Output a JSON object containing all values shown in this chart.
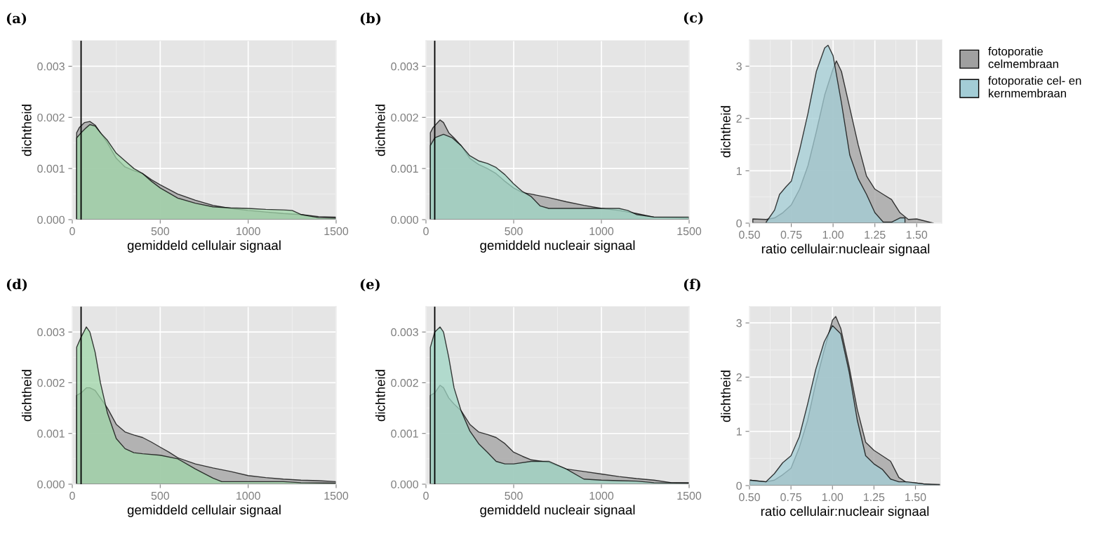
{
  "chart_data": [
    {
      "type": "area",
      "title": "(a)",
      "xlabel": "gemiddeld cellulair signaal",
      "ylabel": "dichtheid",
      "xlim": [
        0,
        1500
      ],
      "xticks": [
        0,
        500,
        1000,
        1500
      ],
      "ylim": [
        0,
        0.0035
      ],
      "yticks": [
        {
          "value": 0,
          "label": "0.000"
        },
        {
          "value": 0.001,
          "label": "0.001"
        },
        {
          "value": 0.002,
          "label": "0.002"
        },
        {
          "value": 0.003,
          "label": "0.003"
        }
      ],
      "grid": true,
      "ref_lines": [
        {
          "axis": "x",
          "value": 50,
          "color": "#000000"
        }
      ],
      "series": [
        {
          "color": "#a0a0a0",
          "x": [
            25,
            40,
            70,
            100,
            130,
            160,
            200,
            250,
            300,
            350,
            400,
            450,
            500,
            600,
            700,
            800,
            900,
            1000,
            1100,
            1200,
            1300,
            1400,
            1500
          ],
          "values": [
            0.0017,
            0.0018,
            0.0019,
            0.00192,
            0.00185,
            0.0017,
            0.0015,
            0.0012,
            0.00103,
            0.00096,
            0.0009,
            0.00078,
            0.00068,
            0.0005,
            0.00038,
            0.00028,
            0.00022,
            0.00018,
            0.00015,
            0.00012,
            0.0001,
            6e-05,
            5e-05
          ]
        },
        {
          "color": "#9fd5a8",
          "x": [
            25,
            50,
            80,
            100,
            130,
            160,
            200,
            250,
            300,
            350,
            400,
            450,
            500,
            600,
            700,
            800,
            900,
            1000,
            1100,
            1200,
            1250,
            1300,
            1400,
            1500
          ],
          "values": [
            0.0016,
            0.0017,
            0.0018,
            0.00186,
            0.00183,
            0.0017,
            0.00155,
            0.0013,
            0.00115,
            0.001,
            0.0009,
            0.00075,
            0.00062,
            0.00042,
            0.00032,
            0.00025,
            0.00023,
            0.00022,
            0.0002,
            0.00019,
            0.00018,
            0.0001,
            4e-05,
            3e-05
          ]
        }
      ]
    },
    {
      "type": "area",
      "title": "(b)",
      "xlabel": "gemiddeld nucleair signaal",
      "ylabel": "dichtheid",
      "xlim": [
        0,
        1500
      ],
      "xticks": [
        0,
        500,
        1000,
        1500
      ],
      "ylim": [
        0,
        0.0035
      ],
      "yticks": [
        {
          "value": 0,
          "label": "0.000"
        },
        {
          "value": 0.001,
          "label": "0.001"
        },
        {
          "value": 0.002,
          "label": "0.002"
        },
        {
          "value": 0.003,
          "label": "0.003"
        }
      ],
      "grid": true,
      "ref_lines": [
        {
          "axis": "x",
          "value": 50,
          "color": "#000000"
        }
      ],
      "series": [
        {
          "color": "#a0a0a0",
          "x": [
            25,
            40,
            80,
            100,
            130,
            160,
            200,
            250,
            300,
            350,
            400,
            450,
            500,
            550,
            600,
            700,
            800,
            900,
            1000,
            1100,
            1200,
            1300,
            1400,
            1500
          ],
          "values": [
            0.0017,
            0.0018,
            0.00195,
            0.0019,
            0.0017,
            0.0016,
            0.00145,
            0.0012,
            0.00108,
            0.001,
            0.0009,
            0.00075,
            0.00062,
            0.00053,
            0.0005,
            0.00043,
            0.00035,
            0.00028,
            0.00022,
            0.00018,
            0.00012,
            5e-05,
            4e-05,
            3e-05
          ]
        },
        {
          "color": "#9fd6c4",
          "x": [
            25,
            50,
            100,
            150,
            200,
            250,
            300,
            350,
            400,
            450,
            500,
            550,
            600,
            650,
            700,
            800,
            900,
            1000,
            1100,
            1150,
            1200,
            1300,
            1400,
            1500
          ],
          "values": [
            0.00145,
            0.0016,
            0.00167,
            0.0016,
            0.00145,
            0.00125,
            0.00115,
            0.0011,
            0.00102,
            0.00088,
            0.0007,
            0.00055,
            0.00045,
            0.00027,
            0.00022,
            0.00022,
            0.00022,
            0.00022,
            0.00022,
            0.00018,
            0.0001,
            5e-05,
            5e-05,
            5e-05
          ]
        }
      ]
    },
    {
      "type": "area",
      "title": "(c)",
      "xlabel": "ratio cellulair:nucleair signaal",
      "ylabel": "dichtheid",
      "xlim": [
        0.5,
        1.65
      ],
      "xticks": [
        {
          "value": 0.5,
          "label": "0.50"
        },
        {
          "value": 0.75,
          "label": "0.75"
        },
        {
          "value": 1.0,
          "label": "1.00"
        },
        {
          "value": 1.25,
          "label": "1.25"
        },
        {
          "value": 1.5,
          "label": "1.50"
        }
      ],
      "ylim": [
        0,
        3.5
      ],
      "yticks": [
        0,
        1,
        2,
        3
      ],
      "grid": true,
      "legend": "right",
      "series": [
        {
          "name": "fotoporatie\ncelmembraan",
          "color": "#a0a0a0",
          "x": [
            0.52,
            0.6,
            0.65,
            0.7,
            0.75,
            0.8,
            0.85,
            0.9,
            0.95,
            1.0,
            1.02,
            1.05,
            1.1,
            1.15,
            1.2,
            1.25,
            1.3,
            1.35,
            1.4,
            1.45,
            1.5,
            1.55,
            1.6
          ],
          "values": [
            0.08,
            0.07,
            0.1,
            0.2,
            0.35,
            0.65,
            1.1,
            1.75,
            2.45,
            2.95,
            3.1,
            2.9,
            2.2,
            1.5,
            0.9,
            0.65,
            0.55,
            0.45,
            0.2,
            0.07,
            0.08,
            0.04,
            0
          ]
        },
        {
          "name": "fotoporatie cel- en\nkernmembraan",
          "color": "#a3cdd6",
          "x": [
            0.6,
            0.65,
            0.68,
            0.72,
            0.75,
            0.8,
            0.85,
            0.9,
            0.95,
            0.97,
            1.0,
            1.05,
            1.1,
            1.15,
            1.2,
            1.25,
            1.3,
            1.35,
            1.4,
            1.43
          ],
          "values": [
            0.02,
            0.25,
            0.55,
            0.7,
            0.8,
            1.4,
            2.1,
            2.9,
            3.35,
            3.4,
            3.2,
            2.3,
            1.3,
            0.85,
            0.55,
            0.2,
            0.02,
            0.02,
            0.1,
            0.1
          ]
        }
      ]
    },
    {
      "type": "area",
      "title": "(d)",
      "xlabel": "gemiddeld cellulair signaal",
      "ylabel": "dichtheid",
      "xlim": [
        0,
        1500
      ],
      "xticks": [
        0,
        500,
        1000,
        1500
      ],
      "ylim": [
        0,
        0.0035
      ],
      "yticks": [
        {
          "value": 0,
          "label": "0.000"
        },
        {
          "value": 0.001,
          "label": "0.001"
        },
        {
          "value": 0.002,
          "label": "0.002"
        },
        {
          "value": 0.003,
          "label": "0.003"
        }
      ],
      "grid": true,
      "ref_lines": [
        {
          "axis": "x",
          "value": 50,
          "color": "#000000"
        }
      ],
      "series": [
        {
          "color": "#a0a0a0",
          "x": [
            25,
            50,
            80,
            100,
            130,
            160,
            200,
            250,
            300,
            350,
            400,
            450,
            500,
            550,
            600,
            700,
            800,
            900,
            1000,
            1100,
            1200,
            1300,
            1400,
            1500
          ],
          "values": [
            0.00175,
            0.0018,
            0.0019,
            0.0019,
            0.00185,
            0.0017,
            0.0015,
            0.00118,
            0.00103,
            0.00097,
            0.00092,
            0.00083,
            0.00073,
            0.00063,
            0.00052,
            0.0004,
            0.00032,
            0.00025,
            0.00017,
            0.00013,
            0.0001,
            8e-05,
            7e-05,
            5e-05
          ]
        },
        {
          "color": "#9fd5a8",
          "x": [
            25,
            50,
            80,
            100,
            130,
            160,
            200,
            250,
            300,
            350,
            400,
            500,
            600,
            700,
            800,
            850,
            900,
            1200,
            1300,
            1500
          ],
          "values": [
            0.0027,
            0.0029,
            0.0031,
            0.003,
            0.0026,
            0.002,
            0.0014,
            0.0009,
            0.0007,
            0.00062,
            0.0006,
            0.00057,
            0.0005,
            0.0003,
            0.00012,
            5e-05,
            5e-05,
            5e-05,
            3e-05,
            2e-05
          ]
        }
      ]
    },
    {
      "type": "area",
      "title": "(e)",
      "xlabel": "gemiddeld nucleair signaal",
      "ylabel": "dichtheid",
      "xlim": [
        0,
        1500
      ],
      "xticks": [
        0,
        500,
        1000,
        1500
      ],
      "ylim": [
        0,
        0.0035
      ],
      "yticks": [
        {
          "value": 0,
          "label": "0.000"
        },
        {
          "value": 0.001,
          "label": "0.001"
        },
        {
          "value": 0.002,
          "label": "0.002"
        },
        {
          "value": 0.003,
          "label": "0.003"
        }
      ],
      "grid": true,
      "ref_lines": [
        {
          "axis": "x",
          "value": 50,
          "color": "#000000"
        }
      ],
      "series": [
        {
          "color": "#a0a0a0",
          "x": [
            25,
            50,
            80,
            100,
            130,
            160,
            200,
            250,
            300,
            350,
            400,
            450,
            500,
            550,
            600,
            700,
            800,
            900,
            1000,
            1100,
            1200,
            1300,
            1400,
            1500
          ],
          "values": [
            0.00175,
            0.0018,
            0.00195,
            0.0019,
            0.0017,
            0.00158,
            0.00145,
            0.00118,
            0.00103,
            0.00098,
            0.00092,
            0.0008,
            0.00063,
            0.00055,
            0.00048,
            0.00043,
            0.0003,
            0.00025,
            0.0002,
            0.00015,
            0.00011,
            8e-05,
            3e-05,
            3e-05
          ]
        },
        {
          "color": "#9fd6c4",
          "x": [
            25,
            50,
            80,
            100,
            130,
            160,
            200,
            250,
            300,
            350,
            400,
            450,
            500,
            600,
            700,
            800,
            900,
            1000,
            1100,
            1200,
            1300,
            1500
          ],
          "values": [
            0.0027,
            0.003,
            0.0031,
            0.003,
            0.0025,
            0.0019,
            0.00145,
            0.00105,
            0.0008,
            0.00063,
            0.00045,
            0.0004,
            0.0004,
            0.00045,
            0.00045,
            0.0003,
            0.0001,
            8e-05,
            7e-05,
            6e-05,
            3e-05,
            2e-05
          ]
        }
      ]
    },
    {
      "type": "area",
      "title": "(f)",
      "xlabel": "ratio cellulair:nucleair signaal",
      "ylabel": "dichtheid",
      "xlim": [
        0.5,
        1.65
      ],
      "xticks": [
        {
          "value": 0.5,
          "label": "0.50"
        },
        {
          "value": 0.75,
          "label": "0.75"
        },
        {
          "value": 1.0,
          "label": "1.00"
        },
        {
          "value": 1.25,
          "label": "1.25"
        },
        {
          "value": 1.5,
          "label": "1.50"
        }
      ],
      "ylim": [
        0,
        3.3
      ],
      "yticks": [
        0,
        1,
        2,
        3
      ],
      "grid": true,
      "series": [
        {
          "color": "#a0a0a0",
          "x": [
            0.5,
            0.6,
            0.65,
            0.7,
            0.75,
            0.8,
            0.85,
            0.9,
            0.95,
            1.0,
            1.02,
            1.05,
            1.1,
            1.15,
            1.2,
            1.25,
            1.3,
            1.35,
            1.4,
            1.45,
            1.5,
            1.55,
            1.65
          ],
          "values": [
            0.1,
            0.07,
            0.1,
            0.2,
            0.32,
            0.7,
            1.2,
            1.9,
            2.5,
            3.05,
            3.12,
            2.9,
            2.2,
            1.4,
            0.8,
            0.65,
            0.55,
            0.45,
            0.15,
            0.05,
            0.05,
            0.03,
            0
          ]
        },
        {
          "color": "#a3cdd6",
          "x": [
            0.5,
            0.6,
            0.65,
            0.7,
            0.75,
            0.8,
            0.85,
            0.9,
            0.95,
            1.0,
            1.05,
            1.1,
            1.15,
            1.2,
            1.25,
            1.3,
            1.35,
            1.4,
            1.45,
            1.5,
            1.55,
            1.65
          ],
          "values": [
            0.1,
            0.07,
            0.22,
            0.42,
            0.55,
            0.9,
            1.5,
            2.15,
            2.65,
            2.95,
            2.8,
            2.1,
            1.2,
            0.55,
            0.4,
            0.3,
            0.12,
            0.07,
            0.07,
            0.05,
            0.03,
            0.02
          ]
        }
      ]
    }
  ]
}
